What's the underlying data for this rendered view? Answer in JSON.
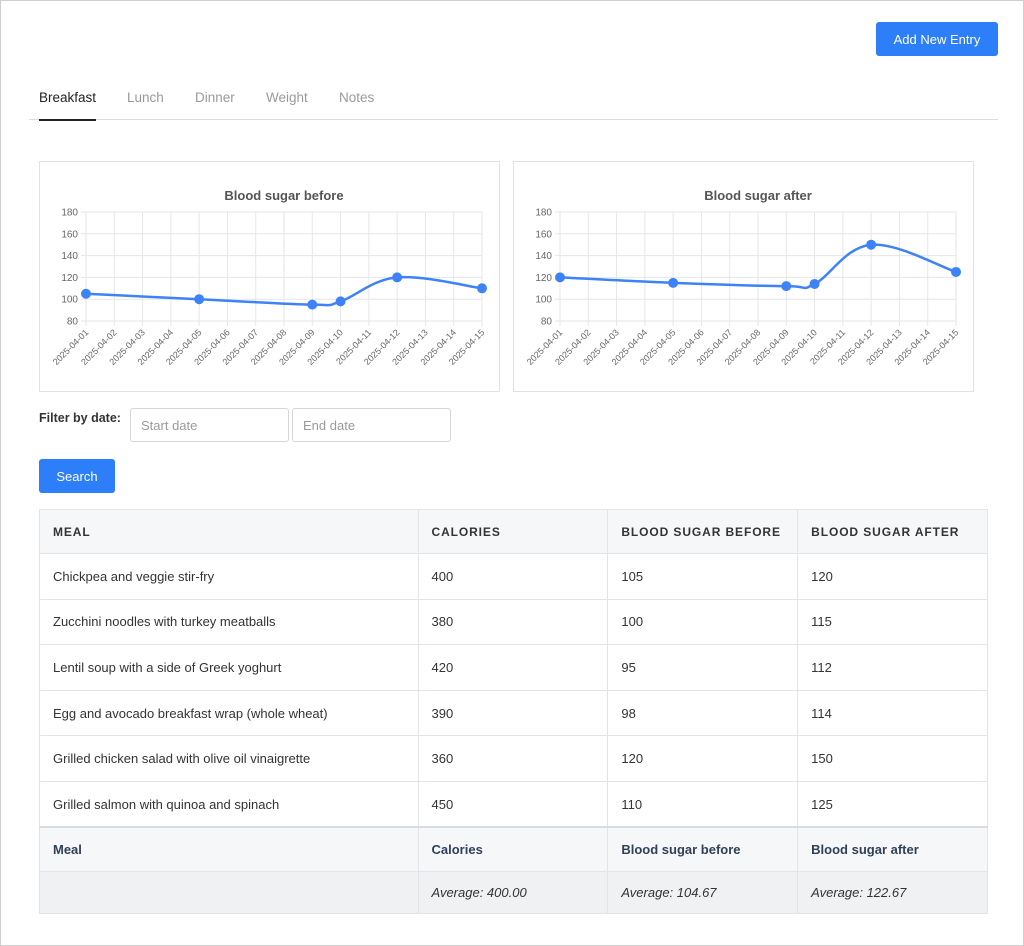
{
  "header": {
    "add_button": "Add New Entry"
  },
  "tabs": [
    {
      "label": "Breakfast",
      "active": true
    },
    {
      "label": "Lunch",
      "active": false
    },
    {
      "label": "Dinner",
      "active": false
    },
    {
      "label": "Weight",
      "active": false
    },
    {
      "label": "Notes",
      "active": false
    }
  ],
  "chart_data": [
    {
      "type": "line",
      "title": "Blood sugar before",
      "x": [
        "2025-04-01",
        "2025-04-02",
        "2025-04-03",
        "2025-04-04",
        "2025-04-05",
        "2025-04-06",
        "2025-04-07",
        "2025-04-08",
        "2025-04-09",
        "2025-04-10",
        "2025-04-11",
        "2025-04-12",
        "2025-04-13",
        "2025-04-14",
        "2025-04-15"
      ],
      "points": [
        {
          "x": "2025-04-01",
          "y": 105
        },
        {
          "x": "2025-04-05",
          "y": 100
        },
        {
          "x": "2025-04-09",
          "y": 95
        },
        {
          "x": "2025-04-10",
          "y": 98
        },
        {
          "x": "2025-04-12",
          "y": 120
        },
        {
          "x": "2025-04-15",
          "y": 110
        }
      ],
      "ylim": [
        80,
        180
      ],
      "yticks": [
        80,
        100,
        120,
        140,
        160,
        180
      ],
      "grid": true,
      "color": "#3e82f7"
    },
    {
      "type": "line",
      "title": "Blood sugar after",
      "x": [
        "2025-04-01",
        "2025-04-02",
        "2025-04-03",
        "2025-04-04",
        "2025-04-05",
        "2025-04-06",
        "2025-04-07",
        "2025-04-08",
        "2025-04-09",
        "2025-04-10",
        "2025-04-11",
        "2025-04-12",
        "2025-04-13",
        "2025-04-14",
        "2025-04-15"
      ],
      "points": [
        {
          "x": "2025-04-01",
          "y": 120
        },
        {
          "x": "2025-04-05",
          "y": 115
        },
        {
          "x": "2025-04-09",
          "y": 112
        },
        {
          "x": "2025-04-10",
          "y": 114
        },
        {
          "x": "2025-04-12",
          "y": 150
        },
        {
          "x": "2025-04-15",
          "y": 125
        }
      ],
      "ylim": [
        80,
        180
      ],
      "yticks": [
        80,
        100,
        120,
        140,
        160,
        180
      ],
      "grid": true,
      "color": "#3e82f7"
    }
  ],
  "filter": {
    "label": "Filter by date:",
    "start_placeholder": "Start date",
    "end_placeholder": "End date",
    "search_button": "Search"
  },
  "table": {
    "headers": [
      "Meal",
      "Calories",
      "Blood sugar before",
      "Blood sugar after"
    ],
    "rows": [
      [
        "Chickpea and veggie stir-fry",
        "400",
        "105",
        "120"
      ],
      [
        "Zucchini noodles with turkey meatballs",
        "380",
        "100",
        "115"
      ],
      [
        "Lentil soup with a side of Greek yoghurt",
        "420",
        "95",
        "112"
      ],
      [
        "Egg and avocado breakfast wrap (whole wheat)",
        "390",
        "98",
        "114"
      ],
      [
        "Grilled chicken salad with olive oil vinaigrette",
        "360",
        "120",
        "150"
      ],
      [
        "Grilled salmon with quinoa and spinach",
        "450",
        "110",
        "125"
      ]
    ],
    "footer_headers": [
      "Meal",
      "Calories",
      "Blood sugar before",
      "Blood sugar after"
    ],
    "averages": [
      "",
      "Average: 400.00",
      "Average: 104.67",
      "Average: 122.67"
    ]
  },
  "colors": {
    "accent": "#2d7ff9",
    "line": "#3e82f7"
  }
}
